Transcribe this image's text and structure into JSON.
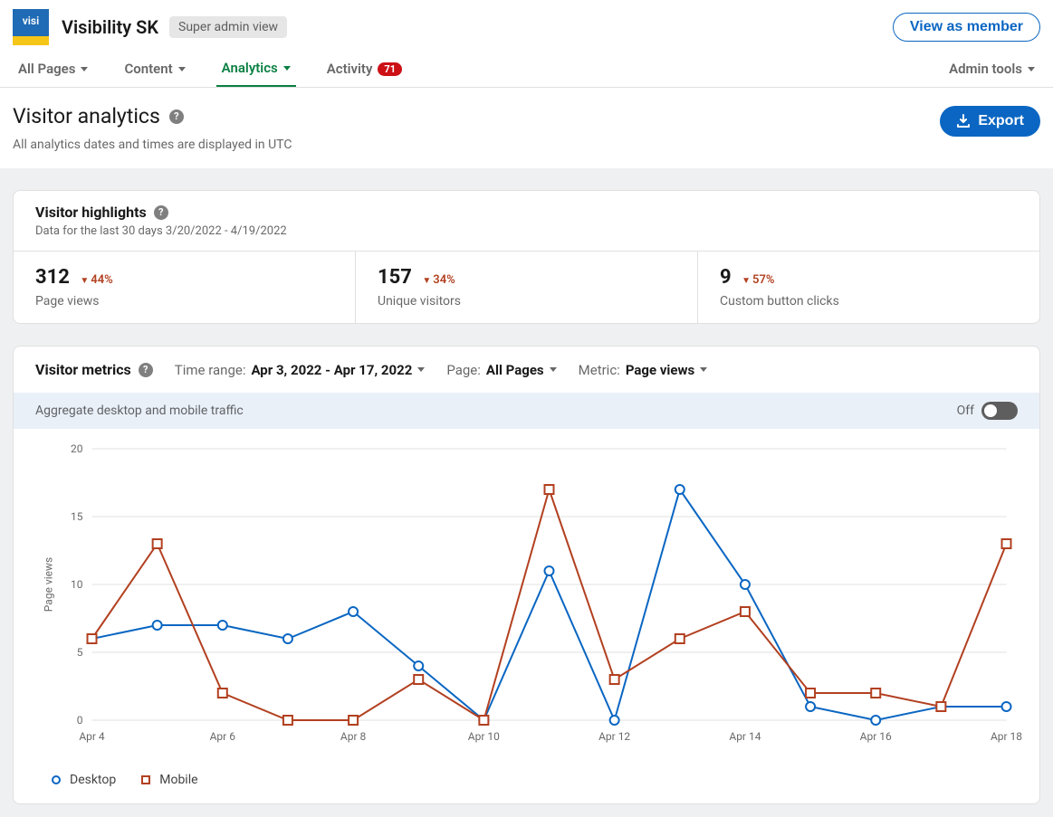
{
  "header": {
    "logo_text": "visi",
    "org_name": "Visibility SK",
    "view_badge": "Super admin view",
    "view_as_member": "View as member"
  },
  "tabs": {
    "all_pages": "All Pages",
    "content": "Content",
    "analytics": "Analytics",
    "activity": "Activity",
    "activity_count": "71",
    "admin_tools": "Admin tools"
  },
  "page": {
    "title": "Visitor analytics",
    "subtitle": "All analytics dates and times are displayed in UTC",
    "export": "Export"
  },
  "highlights": {
    "title": "Visitor highlights",
    "range": "Data for the last 30 days 3/20/2022 - 4/19/2022",
    "stats": [
      {
        "value": "312",
        "delta": "44%",
        "label": "Page views"
      },
      {
        "value": "157",
        "delta": "34%",
        "label": "Unique visitors"
      },
      {
        "value": "9",
        "delta": "57%",
        "label": "Custom button clicks"
      }
    ]
  },
  "metrics": {
    "title": "Visitor metrics",
    "time_range_label": "Time range:",
    "time_range_value": "Apr 3, 2022 - Apr 17, 2022",
    "page_label": "Page:",
    "page_value": "All Pages",
    "metric_label": "Metric:",
    "metric_value": "Page views",
    "aggregate_label": "Aggregate desktop and mobile traffic",
    "toggle_label": "Off"
  },
  "chart": {
    "type": "line",
    "ylabel": "Page views",
    "ylim": [
      0,
      20
    ],
    "ytick_step": 5,
    "x_labels": [
      "Apr 4",
      "",
      "Apr 6",
      "",
      "Apr 8",
      "",
      "Apr 10",
      "",
      "Apr 12",
      "",
      "Apr 14",
      "",
      "Apr 16",
      "",
      "Apr 18"
    ],
    "series": [
      {
        "name": "Desktop",
        "color": "#0a66c2",
        "marker": "circle",
        "values": [
          6,
          7,
          7,
          6,
          8,
          4,
          0,
          11,
          0,
          17,
          10,
          1,
          0,
          1,
          1
        ]
      },
      {
        "name": "Mobile",
        "color": "#b24020",
        "marker": "square",
        "values": [
          6,
          13,
          2,
          0,
          0,
          3,
          0,
          17,
          3,
          6,
          8,
          2,
          2,
          1,
          13
        ]
      }
    ],
    "grid_color": "#e0e0e0",
    "background_color": "#ffffff",
    "line_width": 2,
    "marker_size": 5
  }
}
